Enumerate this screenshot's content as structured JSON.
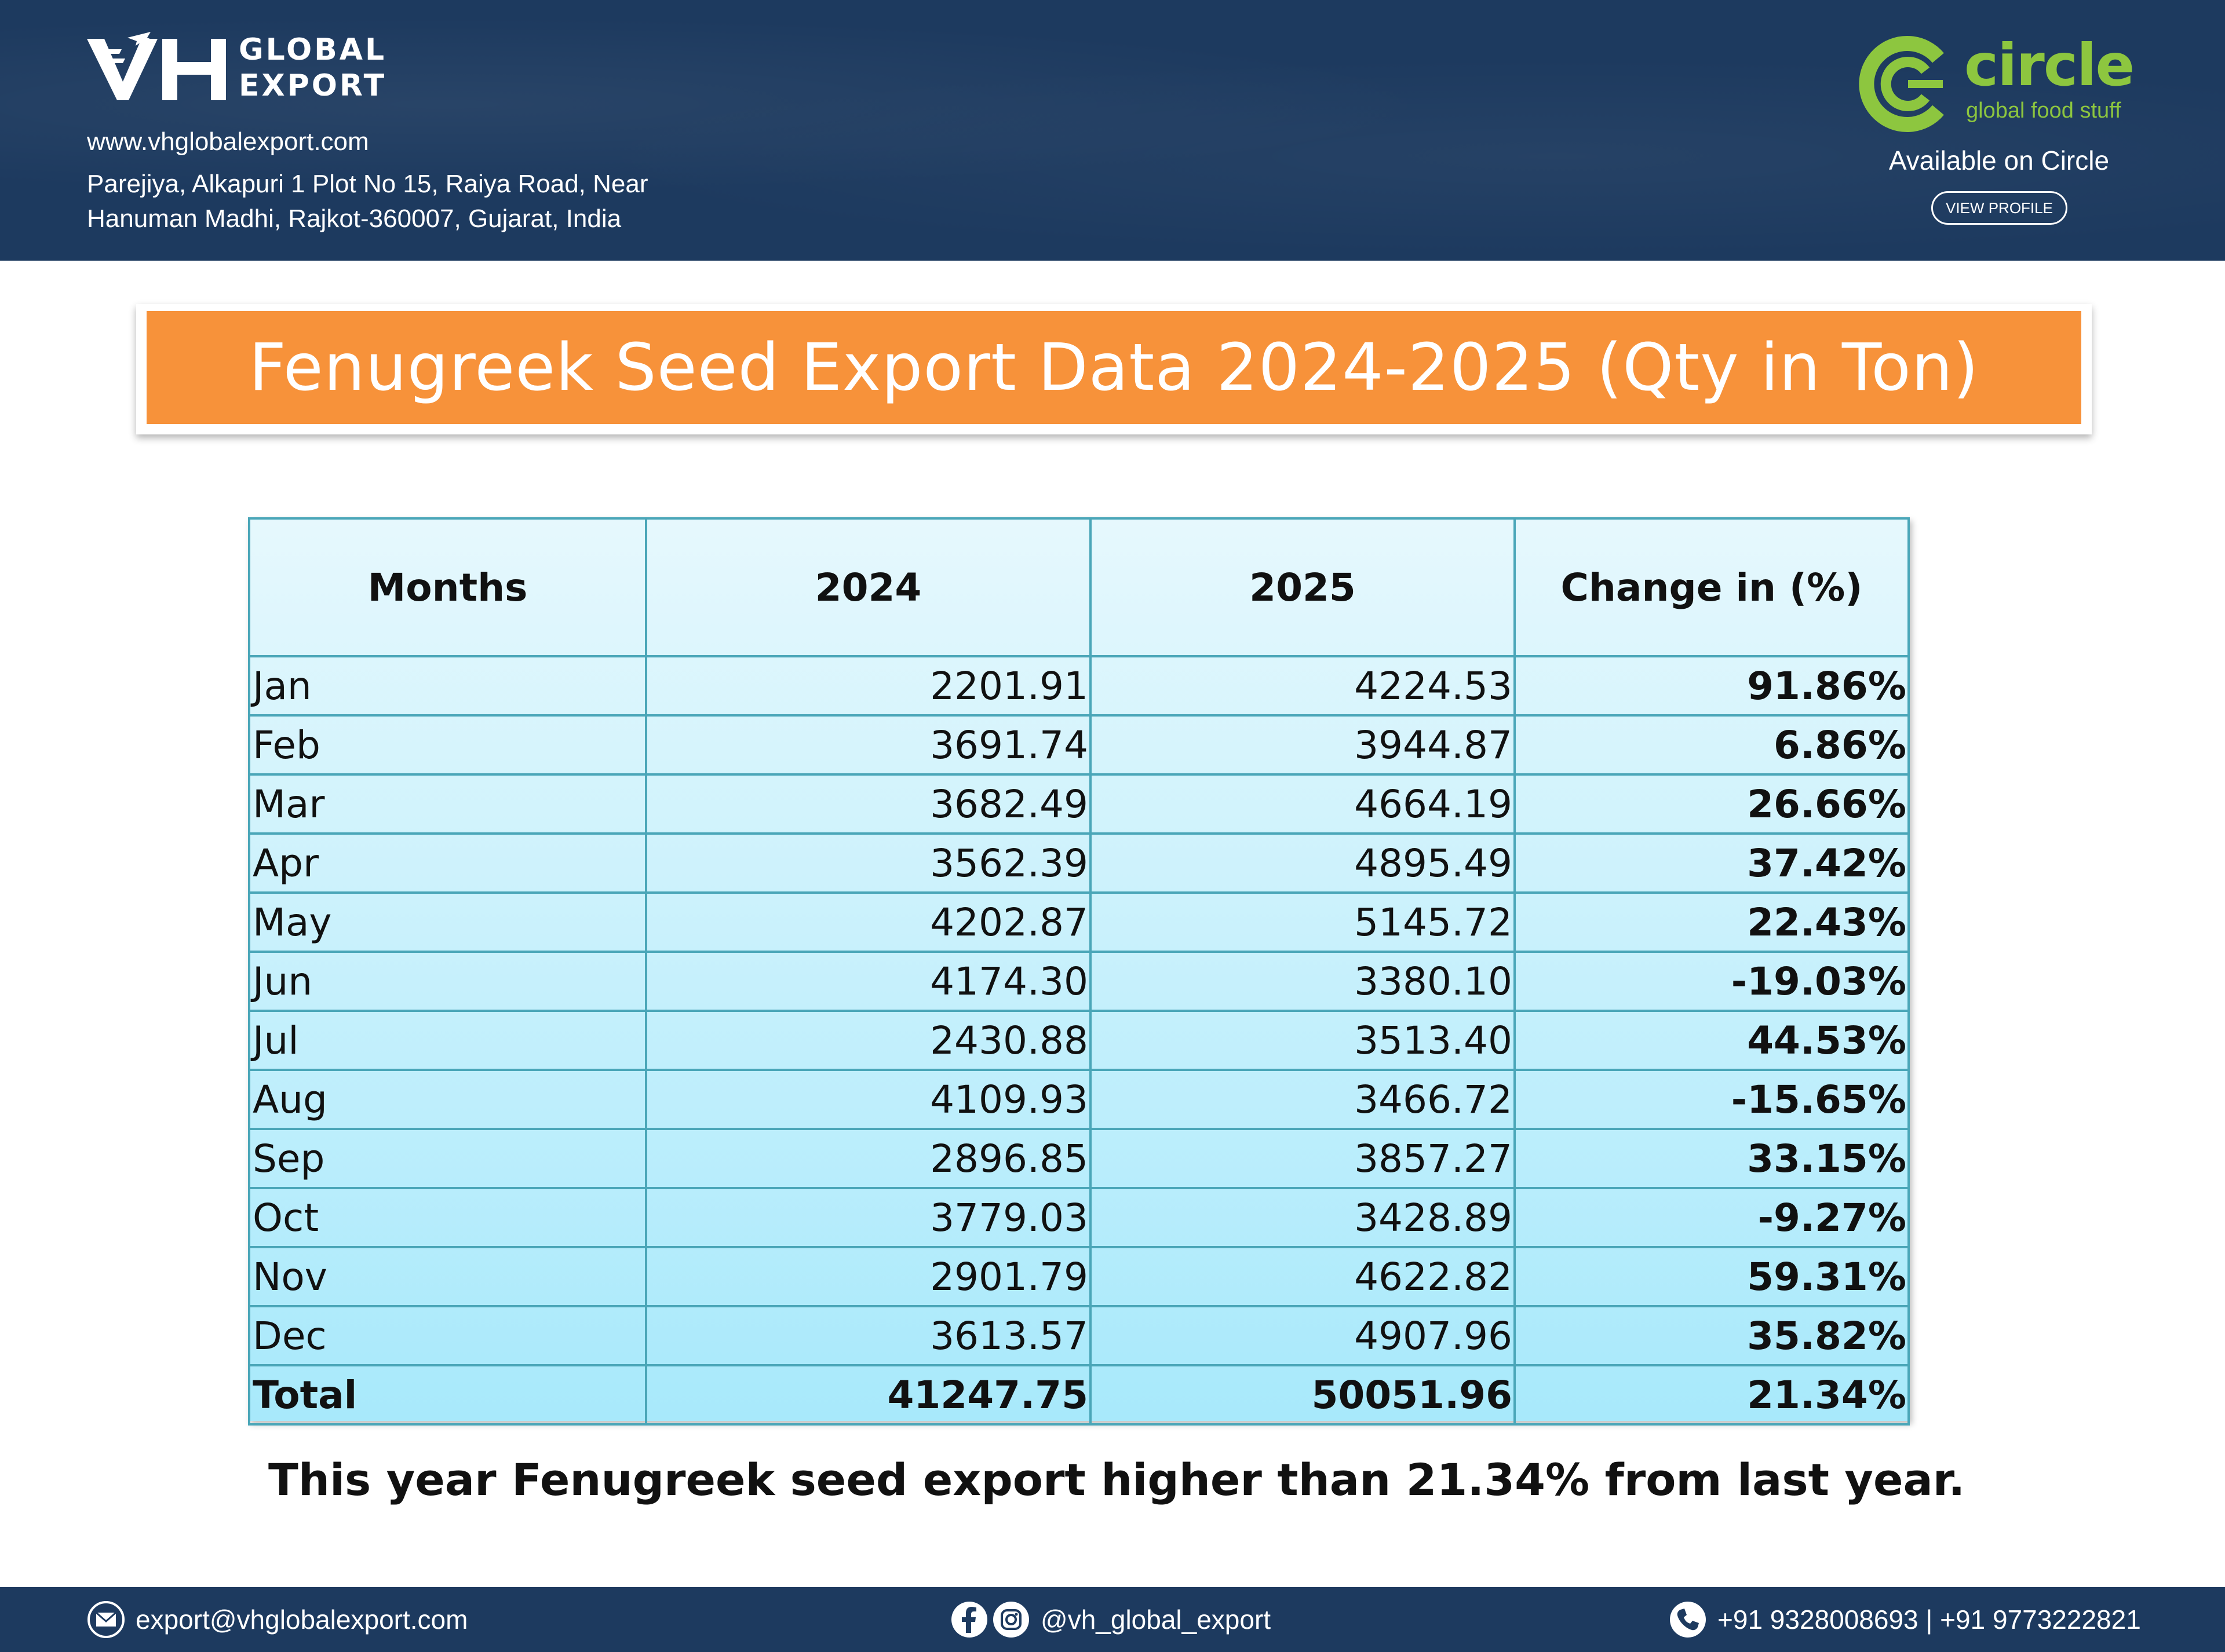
{
  "header": {
    "logo_line1": "GLOBAL",
    "logo_line2": "EXPORT",
    "website": "www.vhglobalexport.com",
    "address_line1": "Parejiya, Alkapuri 1 Plot No 15, Raiya Road, Near",
    "address_line2": "Hanuman Madhi, Rajkot-360007, Gujarat, India",
    "circle_brand": "circle",
    "circle_sub": "global food stuff",
    "available_text": "Available on Circle",
    "view_profile_label": "VIEW PROFILE"
  },
  "title": "Fenugreek Seed Export Data 2024-2025 (Qty in Ton)",
  "table": {
    "headers": [
      "Months",
      "2024",
      "2025",
      "Change in (%)"
    ],
    "rows": [
      [
        "Jan",
        "2201.91",
        "4224.53",
        "91.86%"
      ],
      [
        "Feb",
        "3691.74",
        "3944.87",
        "6.86%"
      ],
      [
        "Mar",
        "3682.49",
        "4664.19",
        "26.66%"
      ],
      [
        "Apr",
        "3562.39",
        "4895.49",
        "37.42%"
      ],
      [
        "May",
        "4202.87",
        "5145.72",
        "22.43%"
      ],
      [
        "Jun",
        "4174.30",
        "3380.10",
        "-19.03%"
      ],
      [
        "Jul",
        "2430.88",
        "3513.40",
        "44.53%"
      ],
      [
        "Aug",
        "4109.93",
        "3466.72",
        "-15.65%"
      ],
      [
        "Sep",
        "2896.85",
        "3857.27",
        "33.15%"
      ],
      [
        "Oct",
        "3779.03",
        "3428.89",
        "-9.27%"
      ],
      [
        "Nov",
        "2901.79",
        "4622.82",
        "59.31%"
      ],
      [
        "Dec",
        "3613.57",
        "4907.96",
        "35.82%"
      ]
    ],
    "total": [
      "Total",
      "41247.75",
      "50051.96",
      "21.34%"
    ]
  },
  "summary": "This year Fenugreek seed export higher than 21.34% from last year.",
  "footer": {
    "email": "export@vhglobalexport.com",
    "social": "@vh_global_export",
    "phone": "+91 9328008693 | +91 9773222821"
  },
  "colors": {
    "navy": "#1d3a5f",
    "orange": "#f7923a",
    "circle_green": "#8dc63f",
    "table_border": "#4aa6b8"
  },
  "icons": [
    "vh-logo-icon",
    "circle-logo-icon",
    "email-icon",
    "facebook-icon",
    "instagram-icon",
    "phone-icon"
  ]
}
